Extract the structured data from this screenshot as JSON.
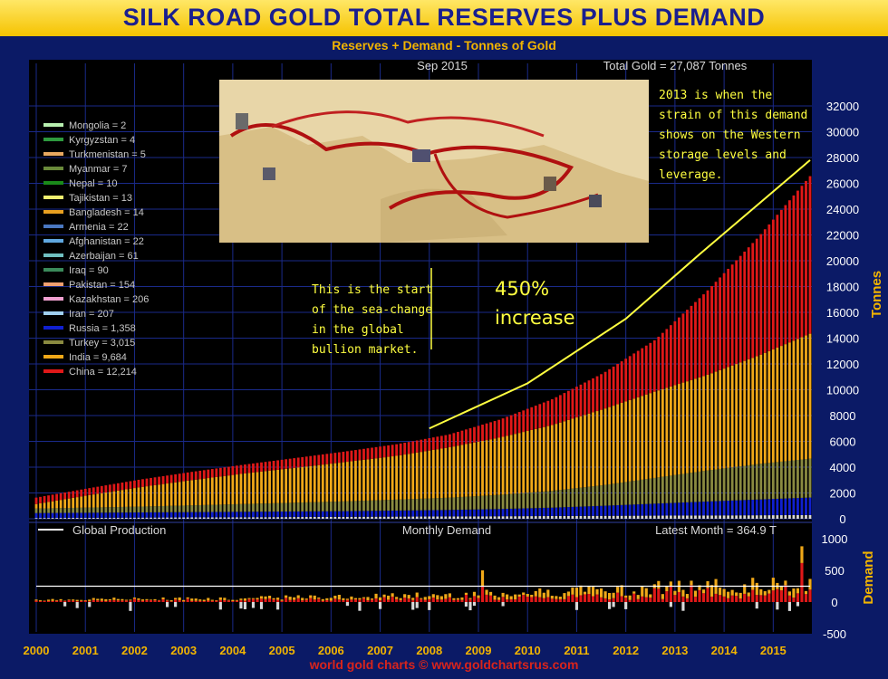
{
  "title": "SILK ROAD GOLD TOTAL RESERVES PLUS DEMAND",
  "subtitle": "Reserves + Demand - Tonnes of Gold",
  "date_label": "Sep 2015",
  "total_label": "Total Gold = 27,087 Tonnes",
  "production_label": "Global Production",
  "monthly_label": "Monthly Demand",
  "latest_label": "Latest Month = 364.9 T",
  "annotation_right": [
    "2013 is when the",
    "strain of this demand",
    "shows on the Western",
    "storage levels and",
    "leverage."
  ],
  "annotation_left": [
    "This is the start",
    "of the sea-change",
    "in the global",
    "bullion market."
  ],
  "annotation_pct": [
    "450%",
    "increase"
  ],
  "footer": "world gold charts © www.goldchartsrus.com",
  "legend": [
    {
      "label": "Mongolia = 2",
      "color": "#b8f0b0"
    },
    {
      "label": "Kyrgyzstan = 4",
      "color": "#2e9a3e"
    },
    {
      "label": "Turkmenistan = 5",
      "color": "#e8a860"
    },
    {
      "label": "Myanmar = 7",
      "color": "#6a8a3a"
    },
    {
      "label": "Nepal = 10",
      "color": "#1a8a1a"
    },
    {
      "label": "Tajikistan = 13",
      "color": "#f0f070"
    },
    {
      "label": "Bangladesh = 14",
      "color": "#e8a020"
    },
    {
      "label": "Armenia = 22",
      "color": "#4a78c0"
    },
    {
      "label": "Afghanistan = 22",
      "color": "#60a8e0"
    },
    {
      "label": "Azerbaijan = 61",
      "color": "#70c0c0"
    },
    {
      "label": "Iraq = 90",
      "color": "#3a8a5a"
    },
    {
      "label": "Pakistan = 154",
      "color": "#f0a070"
    },
    {
      "label": "Kazakhstan = 206",
      "color": "#f0a0d0"
    },
    {
      "label": "Iran = 207",
      "color": "#a0d0f0"
    },
    {
      "label": "Russia = 1,358",
      "color": "#1020d0"
    },
    {
      "label": "Turkey = 3,015",
      "color": "#8a8a40"
    },
    {
      "label": "India = 9,684",
      "color": "#f0a818"
    },
    {
      "label": "China = 12,214",
      "color": "#e01818"
    }
  ],
  "chart_data": [
    {
      "type": "bar",
      "stacked": true,
      "ylabel": "Tonnes",
      "ylim": [
        0,
        32000
      ],
      "yticks": [
        "0",
        "2000",
        "4000",
        "6000",
        "8000",
        "10000",
        "12000",
        "14000",
        "16000",
        "18000",
        "20000",
        "22000",
        "24000",
        "26000",
        "28000",
        "30000",
        "32000"
      ],
      "xticks": [
        "2000",
        "2001",
        "2002",
        "2003",
        "2004",
        "2005",
        "2006",
        "2007",
        "2008",
        "2009",
        "2010",
        "2011",
        "2012",
        "2013",
        "2014",
        "2015"
      ],
      "bar_colors": {
        "china": "#e01818",
        "india": "#f0a818",
        "turkey": "#8a8a40",
        "russia": "#1020d0",
        "others": "#d8d8d8"
      },
      "x": [
        "2000",
        "2001",
        "2002",
        "2003",
        "2004",
        "2005",
        "2006",
        "2007",
        "2008",
        "2009",
        "2010",
        "2011",
        "2012",
        "2013",
        "2014",
        "2015-09"
      ],
      "series": [
        {
          "name": "China = 12,214",
          "values": [
            500,
            540,
            590,
            640,
            690,
            750,
            820,
            900,
            1000,
            1400,
            2000,
            2800,
            4000,
            6500,
            9200,
            12214
          ]
        },
        {
          "name": "India = 9,684",
          "values": [
            350,
            950,
            1500,
            1950,
            2350,
            2700,
            3050,
            3400,
            3900,
            4450,
            5100,
            5900,
            6700,
            7400,
            8400,
            9684
          ]
        },
        {
          "name": "Turkey = 3,015",
          "values": [
            350,
            400,
            450,
            520,
            600,
            680,
            760,
            850,
            950,
            1100,
            1300,
            1600,
            2000,
            2400,
            2750,
            3015
          ]
        },
        {
          "name": "Russia = 1,358",
          "values": [
            380,
            390,
            400,
            410,
            420,
            430,
            440,
            470,
            500,
            560,
            650,
            780,
            930,
            1080,
            1220,
            1358
          ]
        }
      ],
      "total_2008": 7000,
      "total_2015": 27087,
      "trend_line": [
        {
          "x": "2008",
          "y": 7000
        },
        {
          "x": "2015-09",
          "y": 27800
        }
      ]
    },
    {
      "type": "bar",
      "title": "Monthly Demand",
      "ylabel": "Demand",
      "ylim": [
        -500,
        1000
      ],
      "yticks": [
        "1000",
        "500",
        "0",
        "-500"
      ],
      "global_production_level": 250,
      "latest_month": 364.9,
      "peaks": [
        {
          "x": "2009-02",
          "y": 500
        },
        {
          "x": "2015-07",
          "y": 880
        },
        {
          "x": "2015-09",
          "y": 364.9
        }
      ],
      "yearly_typical_monthly": [
        {
          "year": "2000",
          "value": 40
        },
        {
          "year": "2001",
          "value": 45
        },
        {
          "year": "2002",
          "value": 50
        },
        {
          "year": "2003",
          "value": 55
        },
        {
          "year": "2004",
          "value": 60
        },
        {
          "year": "2005",
          "value": 70
        },
        {
          "year": "2006",
          "value": 80
        },
        {
          "year": "2007",
          "value": 90
        },
        {
          "year": "2008",
          "value": 110
        },
        {
          "year": "2009",
          "value": 130
        },
        {
          "year": "2010",
          "value": 150
        },
        {
          "year": "2011",
          "value": 180
        },
        {
          "year": "2012",
          "value": 200
        },
        {
          "year": "2013",
          "value": 260
        },
        {
          "year": "2014",
          "value": 240
        },
        {
          "year": "2015",
          "value": 280
        }
      ]
    }
  ]
}
